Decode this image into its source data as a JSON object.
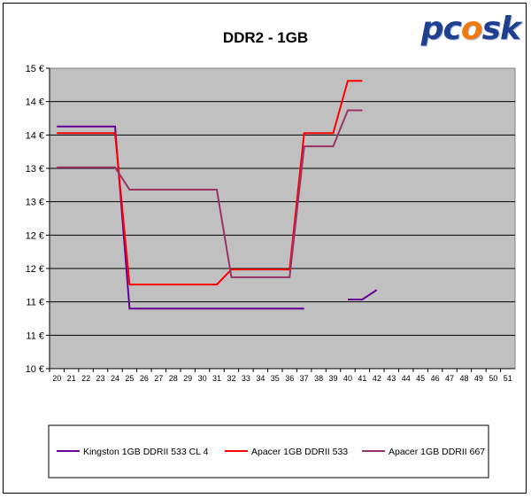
{
  "logo": {
    "text_left": "pc",
    "text_flame": "o",
    "text_right": "sk"
  },
  "colors": {
    "plot_bg": "#c0c0c0",
    "grid": "#000000",
    "kingston": "#660099",
    "apacer533": "#ff0000",
    "apacer667": "#993366"
  },
  "chart_data": {
    "type": "line",
    "title": "DDR2 - 1GB",
    "xlabel": "",
    "ylabel": "",
    "x": [
      20,
      21,
      22,
      23,
      24,
      25,
      26,
      27,
      28,
      29,
      30,
      31,
      32,
      33,
      34,
      35,
      36,
      37,
      38,
      39,
      40,
      41,
      42,
      43,
      44,
      45,
      46,
      47,
      48,
      49,
      50,
      51
    ],
    "y_tick_labels": [
      "10 €",
      "11 €",
      "11 €",
      "12 €",
      "12 €",
      "13 €",
      "13 €",
      "14 €",
      "14 €",
      "15 €"
    ],
    "ylim": [
      10,
      15
    ],
    "grid": true,
    "legend_position": "bottom",
    "series": [
      {
        "name": "Kingston 1GB DDRII 533 CL 4",
        "color": "#660099",
        "values": [
          14.03,
          14.03,
          14.03,
          14.03,
          14.03,
          11.0,
          11.0,
          11.0,
          11.0,
          11.0,
          11.0,
          11.0,
          11.0,
          11.0,
          11.0,
          11.0,
          11.0,
          11.0,
          null,
          null,
          11.15,
          11.15,
          11.31,
          null,
          null,
          null,
          null,
          null,
          null,
          null,
          null,
          null
        ]
      },
      {
        "name": "Apacer 1GB DDRII 533",
        "color": "#ff0000",
        "values": [
          13.92,
          13.92,
          13.92,
          13.92,
          13.92,
          11.4,
          11.4,
          11.4,
          11.4,
          11.4,
          11.4,
          11.4,
          11.65,
          11.65,
          11.65,
          11.65,
          11.65,
          13.92,
          13.92,
          13.92,
          14.79,
          14.79,
          null,
          null,
          null,
          null,
          null,
          null,
          null,
          null,
          null,
          null
        ]
      },
      {
        "name": "Apacer 1GB DDRII 667",
        "color": "#993366",
        "values": [
          13.35,
          13.35,
          13.35,
          13.35,
          13.35,
          12.98,
          12.98,
          12.98,
          12.98,
          12.98,
          12.98,
          12.98,
          11.52,
          11.52,
          11.52,
          11.52,
          11.52,
          13.7,
          13.7,
          13.7,
          14.3,
          14.3,
          null,
          null,
          null,
          null,
          null,
          null,
          null,
          null,
          null,
          null
        ]
      }
    ]
  }
}
